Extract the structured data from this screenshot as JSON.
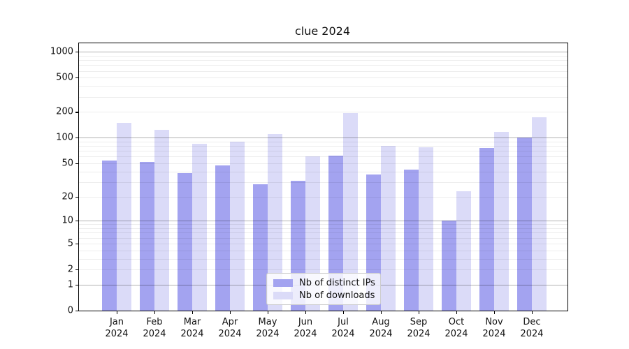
{
  "title": "clue 2024",
  "chart_data": {
    "type": "bar",
    "title": "clue 2024",
    "categories": [
      "Jan 2024",
      "Feb 2024",
      "Mar 2024",
      "Apr 2024",
      "May 2024",
      "Jun 2024",
      "Jul 2024",
      "Aug 2024",
      "Sep 2024",
      "Oct 2024",
      "Nov 2024",
      "Dec 2024"
    ],
    "series": [
      {
        "name": "Nb of distinct IPs",
        "color": "#a3a3f0",
        "values": [
          54,
          52,
          38,
          47,
          28,
          31,
          62,
          37,
          42,
          10,
          76,
          101
        ]
      },
      {
        "name": "Nb of downloads",
        "color": "#dbdbf8",
        "values": [
          150,
          123,
          85,
          90,
          110,
          60,
          195,
          80,
          77,
          23,
          116,
          173
        ]
      }
    ],
    "y_axis": {
      "scale": "log1p",
      "ticks": [
        0,
        1,
        2,
        5,
        10,
        20,
        50,
        100,
        200,
        500,
        1000
      ],
      "top_value": 1254
    },
    "x_axis": {
      "note": "month + year two-line tick labels"
    },
    "grid": "horizontal major+minor",
    "legend_position": "lower center",
    "colors": {
      "major_grid": "rgba(0,0,0,0.30)",
      "minor_grid": "rgba(0,0,0,0.07)",
      "spine": "#000000",
      "background": "#ffffff"
    }
  }
}
